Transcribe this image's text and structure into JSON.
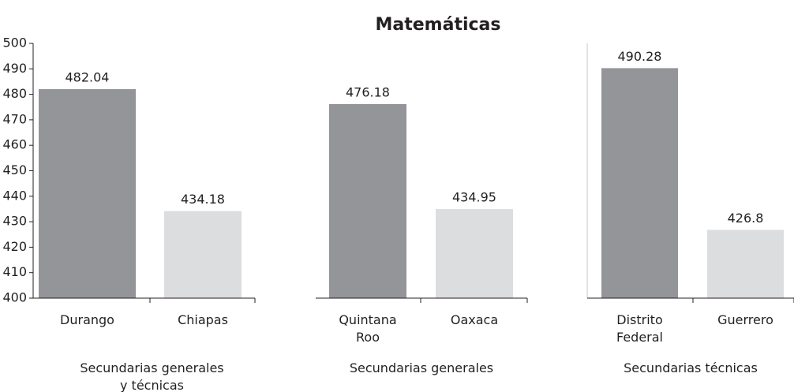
{
  "chart_data": {
    "type": "bar",
    "title": "Matemáticas",
    "ylim": [
      400,
      500
    ],
    "yticks": [
      400,
      410,
      420,
      430,
      440,
      450,
      460,
      470,
      480,
      490,
      500
    ],
    "colors": [
      "#939598",
      "#dcddde"
    ],
    "groups": [
      {
        "label": "Secundarias generales y técnicas",
        "categories": [
          "Durango",
          "Chiapas"
        ],
        "values": [
          482.04,
          434.18
        ]
      },
      {
        "label": "Secundarias generales",
        "categories": [
          "Quintana Roo",
          "Oaxaca"
        ],
        "values": [
          476.18,
          434.95
        ]
      },
      {
        "label": "Secundarias técnicas",
        "categories": [
          "Distrito Federal",
          "Guerrero"
        ],
        "values": [
          490.28,
          426.8
        ]
      }
    ]
  }
}
